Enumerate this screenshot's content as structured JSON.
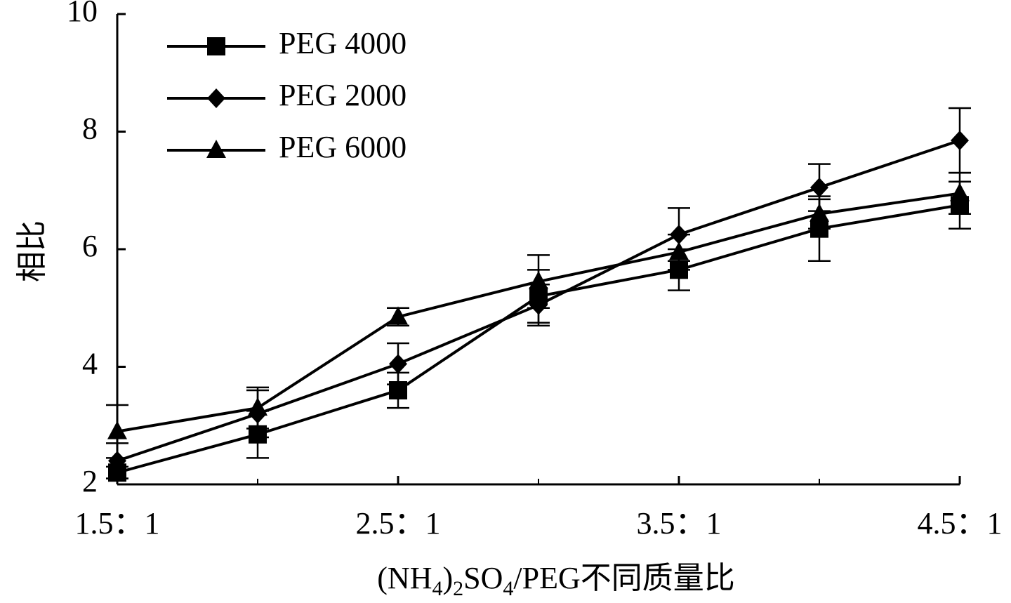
{
  "chart_data": {
    "type": "line",
    "title": "",
    "ylabel": "相比",
    "xlabel": {
      "prefix": "(NH",
      "sub1": "4",
      "mid1": ")",
      "sub2": "2",
      "mid2": "SO",
      "sub3": "4",
      "suffix": "/PEG不同质量比"
    },
    "ylim": [
      2,
      10
    ],
    "yticks": [
      2,
      4,
      6,
      8,
      10
    ],
    "x": [
      1.5,
      2.0,
      2.5,
      3.0,
      3.5,
      4.0,
      4.5
    ],
    "xticks": [
      {
        "value": 1.5,
        "label": "1.5：1"
      },
      {
        "value": 2.5,
        "label": "2.5：1"
      },
      {
        "value": 3.5,
        "label": "3.5：1"
      },
      {
        "value": 4.5,
        "label": "4.5：1"
      }
    ],
    "xminor": [
      2.0,
      3.0,
      4.0
    ],
    "legend_position": "top-left",
    "series": [
      {
        "name": "PEG 4000",
        "marker": "square",
        "values": [
          2.2,
          2.85,
          3.6,
          5.2,
          5.65,
          6.35,
          6.75
        ],
        "errors": [
          0.1,
          0.4,
          0.3,
          0.45,
          0.35,
          0.55,
          0.4
        ]
      },
      {
        "name": "PEG 2000",
        "marker": "diamond",
        "values": [
          2.4,
          3.2,
          4.05,
          5.05,
          6.25,
          7.05,
          7.85
        ],
        "errors": [
          0.3,
          0.4,
          0.35,
          0.35,
          0.45,
          0.4,
          0.55
        ]
      },
      {
        "name": "PEG 6000",
        "marker": "triangle",
        "values": [
          2.9,
          3.3,
          4.85,
          5.45,
          5.95,
          6.6,
          6.95
        ],
        "errors": [
          0.45,
          0.35,
          0.15,
          0.45,
          0.3,
          0.25,
          0.35
        ]
      }
    ]
  }
}
